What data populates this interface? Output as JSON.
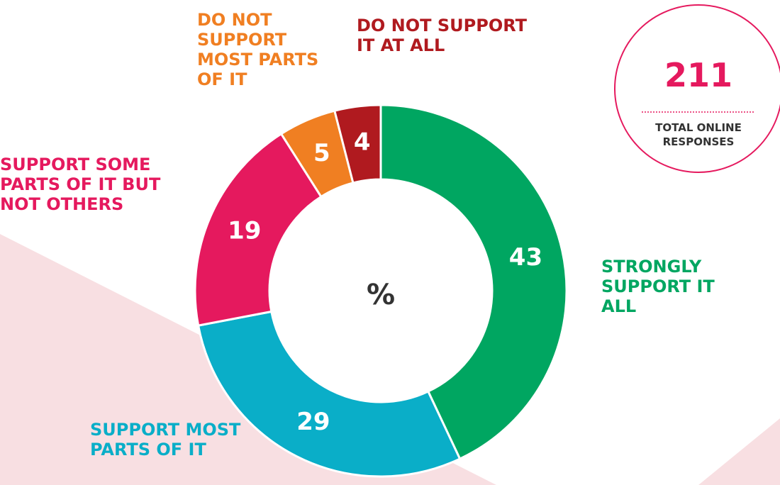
{
  "chart_data": {
    "type": "donut",
    "categories": [
      "STRONGLY SUPPORT IT ALL",
      "SUPPORT MOST PARTS OF IT",
      "SUPPORT SOME PARTS OF IT BUT NOT OTHERS",
      "DO NOT SUPPORT MOST PARTS OF IT",
      "DO NOT SUPPORT IT AT ALL"
    ],
    "values": [
      43,
      29,
      19,
      5,
      4
    ],
    "colors": [
      "#00a661",
      "#0aaec8",
      "#e5195e",
      "#f07f22",
      "#b01a1f"
    ],
    "center_label": "%",
    "badge": {
      "value": "211",
      "label": "TOTAL ONLINE RESPONSES"
    }
  }
}
